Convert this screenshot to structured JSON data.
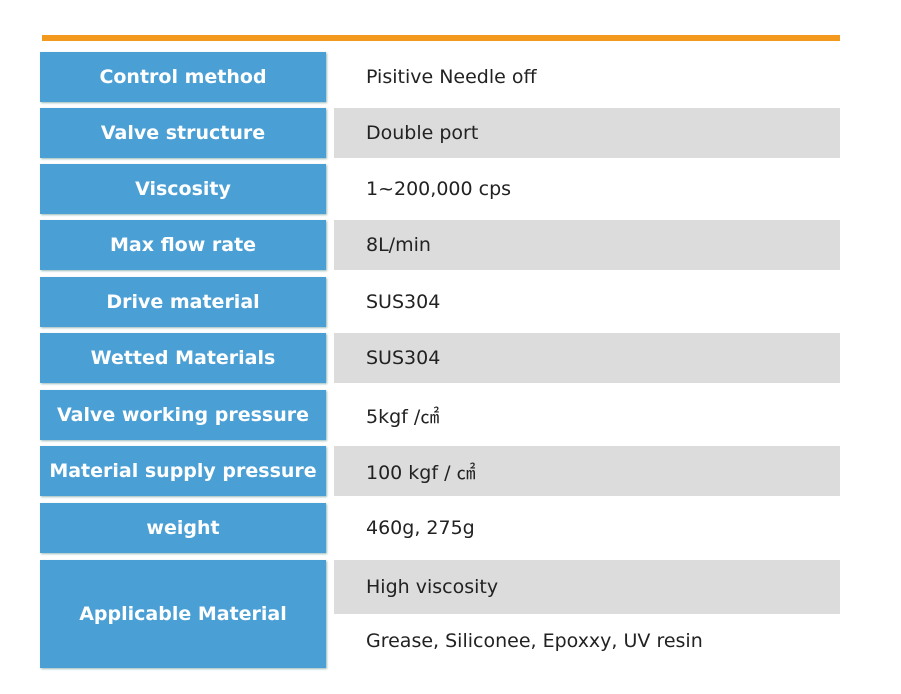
{
  "table": {
    "rows": [
      {
        "label": "Control method",
        "values": [
          "Pisitive Needle off"
        ]
      },
      {
        "label": "Valve structure",
        "values": [
          "Double port"
        ]
      },
      {
        "label": "Viscosity",
        "values": [
          "1~200,000 cps"
        ]
      },
      {
        "label": "Max flow rate",
        "values": [
          "8L/min"
        ]
      },
      {
        "label": "Drive material",
        "values": [
          "SUS304"
        ]
      },
      {
        "label": "Wetted Materials",
        "values": [
          "SUS304"
        ]
      },
      {
        "label": "Valve working pressure",
        "values": [
          "5kgf /㎠"
        ]
      },
      {
        "label": "Material supply pressure",
        "values": [
          "100 kgf / ㎠"
        ]
      },
      {
        "label": "weight",
        "values": [
          "460g, 275g"
        ]
      },
      {
        "label": "Applicable Material",
        "values": [
          "High viscosity",
          "Grease, Siliconee, Epoxxy, UV resin"
        ]
      }
    ]
  }
}
